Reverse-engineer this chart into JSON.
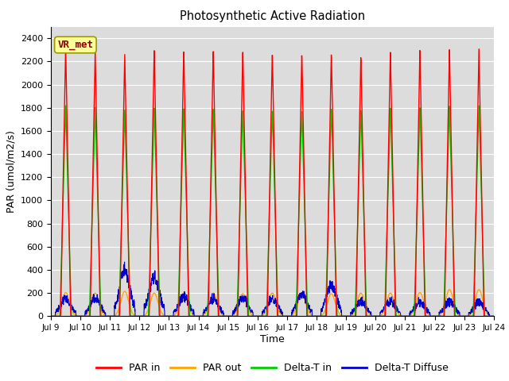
{
  "title": "Photosynthetic Active Radiation",
  "ylabel": "PAR (umol/m2/s)",
  "xlabel": "Time",
  "ylim": [
    0,
    2500
  ],
  "yticks": [
    0,
    200,
    400,
    600,
    800,
    1000,
    1200,
    1400,
    1600,
    1800,
    2000,
    2200,
    2400
  ],
  "num_days": 15,
  "xtick_labels": [
    "Jul 9",
    "Jul 10",
    "Jul 11",
    "Jul 12",
    "Jul 13",
    "Jul 14",
    "Jul 15",
    "Jul 16",
    "Jul 17",
    "Jul 18",
    "Jul 19",
    "Jul 20",
    "Jul 21",
    "Jul 22",
    "Jul 23",
    "Jul 24"
  ],
  "bg_color": "#dcdcdc",
  "fig_bg": "#ffffff",
  "annotation_text": "VR_met",
  "annotation_color": "#8B0000",
  "annotation_bg": "#ffff99",
  "colors": {
    "PAR_in": "#ff0000",
    "PAR_out": "#ffa500",
    "Delta_T_in": "#00cc00",
    "Delta_T_Diffuse": "#0000cc"
  },
  "legend_labels": [
    "PAR in",
    "PAR out",
    "Delta-T in",
    "Delta-T Diffuse"
  ],
  "par_in_peaks": [
    2340,
    2300,
    2275,
    2315,
    2310,
    2320,
    2320,
    2300,
    2290,
    2290,
    2260,
    2300,
    2310,
    2310,
    2310
  ],
  "par_out_peaks": [
    205,
    200,
    215,
    200,
    200,
    200,
    195,
    200,
    200,
    195,
    200,
    200,
    205,
    230,
    230
  ],
  "delta_t_peaks": [
    1820,
    1810,
    1790,
    1810,
    1810,
    1810,
    1800,
    1800,
    1795,
    1810,
    1795,
    1810,
    1810,
    1820,
    1820
  ],
  "delta_d_peaks": [
    100,
    100,
    320,
    260,
    115,
    100,
    100,
    100,
    135,
    200,
    80,
    80,
    75,
    75,
    75
  ]
}
